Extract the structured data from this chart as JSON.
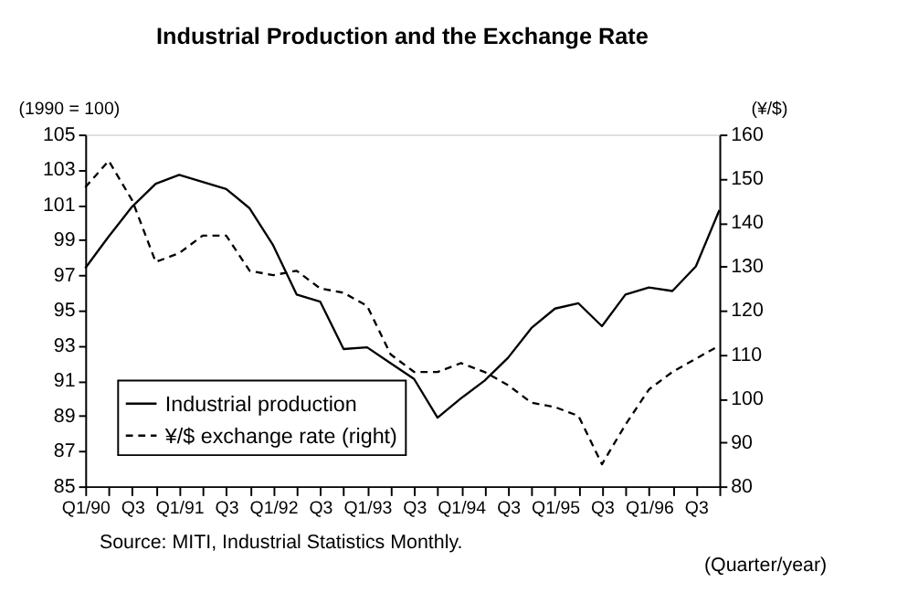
{
  "chart_data": {
    "type": "line",
    "title": "Industrial Production and the Exchange Rate",
    "ylabel": "(1990 = 100)",
    "y2label": "(¥/$)",
    "xlabel": "(Quarter/year)",
    "annotations": [
      "Source: MITI, Industrial Statistics Monthly."
    ],
    "categories": [
      "Q1/90",
      null,
      "Q3",
      null,
      "Q1/91",
      null,
      "Q3",
      null,
      "Q1/92",
      null,
      "Q3",
      null,
      "Q1/93",
      null,
      "Q3",
      null,
      "Q1/94",
      null,
      "Q3",
      null,
      "Q1/95",
      null,
      "Q3",
      null,
      "Q1/96",
      null,
      "Q3",
      null
    ],
    "series": [
      {
        "name": "Industrial production",
        "color": "#000000",
        "line_style": "solid",
        "values": [
          97.4,
          99.2,
          100.9,
          102.2,
          102.7,
          102.3,
          101.9,
          100.8,
          98.7,
          95.9,
          95.5,
          92.8,
          92.9,
          92.0,
          91.1,
          88.9,
          90.0,
          91.0,
          92.3,
          94.0,
          95.1,
          95.4,
          94.1,
          95.9,
          96.3,
          96.1,
          97.5,
          100.7
        ]
      },
      {
        "name": "¥/$ exchange rate (right)",
        "color": "#000000",
        "line_style": "dashed",
        "axis": "y2",
        "values": [
          148,
          154,
          145,
          131,
          133,
          137,
          137,
          129,
          128,
          129,
          125,
          124,
          121,
          110,
          106,
          106,
          108,
          106,
          103,
          99,
          98,
          96,
          85,
          94,
          102,
          106,
          109,
          112
        ]
      }
    ],
    "ylim": [
      85,
      105
    ],
    "yticks": [
      85,
      87,
      89,
      91,
      93,
      95,
      97,
      99,
      101,
      103,
      105
    ],
    "y2lim": [
      80,
      160
    ],
    "y2ticks": [
      80,
      90,
      100,
      110,
      120,
      130,
      140,
      150,
      160
    ],
    "legend": "bottom left",
    "grid": false
  }
}
